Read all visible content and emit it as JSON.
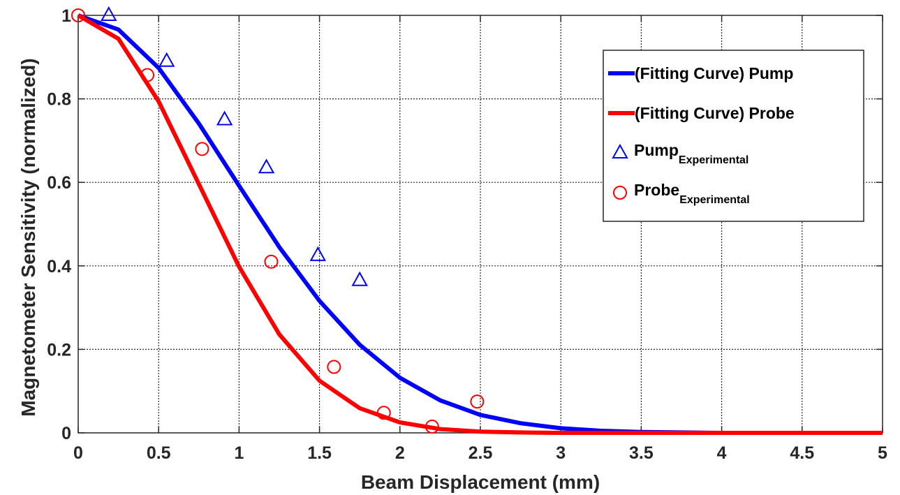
{
  "chart_data": {
    "type": "line",
    "xlabel": "Beam Displacement (mm)",
    "ylabel": "Magnetometer Sensitivity (normalized)",
    "xlim": [
      0,
      5
    ],
    "ylim": [
      0,
      1
    ],
    "x_ticks": [
      "0",
      "0.5",
      "1",
      "1.5",
      "2",
      "2.5",
      "3",
      "3.5",
      "4",
      "4.5",
      "5"
    ],
    "y_ticks": [
      "0",
      "0.2",
      "0.4",
      "0.6",
      "0.8",
      "1"
    ],
    "grid": true,
    "legend_position": "top-right",
    "series": [
      {
        "name": "(Fitting Curve) Pump",
        "kind": "line",
        "color": "#0000ff",
        "x": [
          0,
          0.25,
          0.5,
          0.75,
          1,
          1.25,
          1.5,
          1.75,
          2,
          2.25,
          2.5,
          2.75,
          3,
          3.25,
          3.5,
          3.75,
          4,
          4.25,
          4.5,
          4.75,
          5
        ],
        "y": [
          1.0,
          0.966,
          0.874,
          0.741,
          0.592,
          0.445,
          0.316,
          0.211,
          0.132,
          0.078,
          0.043,
          0.023,
          0.011,
          0.005,
          0.002,
          0.001,
          0.0,
          0.0,
          0.0,
          0.0,
          0.0
        ]
      },
      {
        "name": "(Fitting Curve) Probe",
        "kind": "line",
        "color": "#ff0000",
        "x": [
          0,
          0.25,
          0.5,
          0.75,
          1,
          1.25,
          1.5,
          1.75,
          2,
          2.25,
          2.5,
          2.75,
          3,
          3.25,
          3.5,
          3.75,
          4,
          4.25,
          4.5,
          4.75,
          5
        ],
        "y": [
          1.0,
          0.944,
          0.794,
          0.596,
          0.398,
          0.236,
          0.125,
          0.059,
          0.025,
          0.009,
          0.003,
          0.001,
          0.0,
          0.0,
          0.0,
          0.0,
          0.0,
          0.0,
          0.0,
          0.0,
          0.0
        ]
      },
      {
        "name": "Pump",
        "name_subscript": "Experimental",
        "kind": "scatter",
        "marker": "triangle",
        "color": "#0000ff",
        "x": [
          0.19,
          0.55,
          0.91,
          1.17,
          1.49,
          1.75
        ],
        "y": [
          1.0,
          0.89,
          0.75,
          0.635,
          0.425,
          0.365
        ]
      },
      {
        "name": "Probe",
        "name_subscript": "Experimental",
        "kind": "scatter",
        "marker": "circle",
        "color": "#ff0000",
        "x": [
          0.0,
          0.43,
          0.77,
          1.2,
          1.59,
          1.9,
          2.2,
          2.48
        ],
        "y": [
          1.0,
          0.857,
          0.68,
          0.41,
          0.158,
          0.048,
          0.015,
          0.075
        ]
      }
    ]
  }
}
